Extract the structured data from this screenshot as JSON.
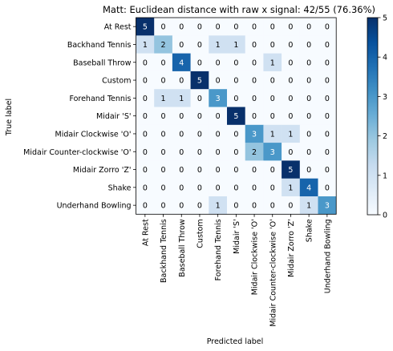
{
  "chart_data": {
    "type": "heatmap",
    "title": "Matt: Euclidean distance with raw x signal: 42/55 (76.36%)",
    "xlabel": "Predicted label",
    "ylabel": "True label",
    "row_labels": [
      "At Rest",
      "Backhand Tennis",
      "Baseball Throw",
      "Custom",
      "Forehand Tennis",
      "Midair 'S'",
      "Midair Clockwise 'O'",
      "Midair Counter-clockwise 'O'",
      "Midair Zorro 'Z'",
      "Shake",
      "Underhand Bowling"
    ],
    "col_labels": [
      "At Rest",
      "Backhand Tennis",
      "Baseball Throw",
      "Custom",
      "Forehand Tennis",
      "Midair 'S'",
      "Midair Clockwise 'O'",
      "Midair Counter-clockwise 'O'",
      "Midair Zorro 'Z'",
      "Shake",
      "Underhand Bowling"
    ],
    "values": [
      [
        5,
        0,
        0,
        0,
        0,
        0,
        0,
        0,
        0,
        0,
        0
      ],
      [
        1,
        2,
        0,
        0,
        1,
        1,
        0,
        0,
        0,
        0,
        0
      ],
      [
        0,
        0,
        4,
        0,
        0,
        0,
        0,
        1,
        0,
        0,
        0
      ],
      [
        0,
        0,
        0,
        5,
        0,
        0,
        0,
        0,
        0,
        0,
        0
      ],
      [
        0,
        1,
        1,
        0,
        3,
        0,
        0,
        0,
        0,
        0,
        0
      ],
      [
        0,
        0,
        0,
        0,
        0,
        5,
        0,
        0,
        0,
        0,
        0
      ],
      [
        0,
        0,
        0,
        0,
        0,
        0,
        3,
        1,
        1,
        0,
        0
      ],
      [
        0,
        0,
        0,
        0,
        0,
        0,
        2,
        3,
        0,
        0,
        0
      ],
      [
        0,
        0,
        0,
        0,
        0,
        0,
        0,
        0,
        5,
        0,
        0
      ],
      [
        0,
        0,
        0,
        0,
        0,
        0,
        0,
        0,
        1,
        4,
        0
      ],
      [
        0,
        0,
        0,
        0,
        1,
        0,
        0,
        0,
        0,
        1,
        3
      ]
    ],
    "colorbar": {
      "min": 0,
      "max": 5,
      "ticks": [
        0,
        1,
        2,
        3,
        4,
        5
      ],
      "colormap": "Blues"
    },
    "colors": {
      "low": "#f7fbff",
      "high": "#08306b"
    }
  }
}
